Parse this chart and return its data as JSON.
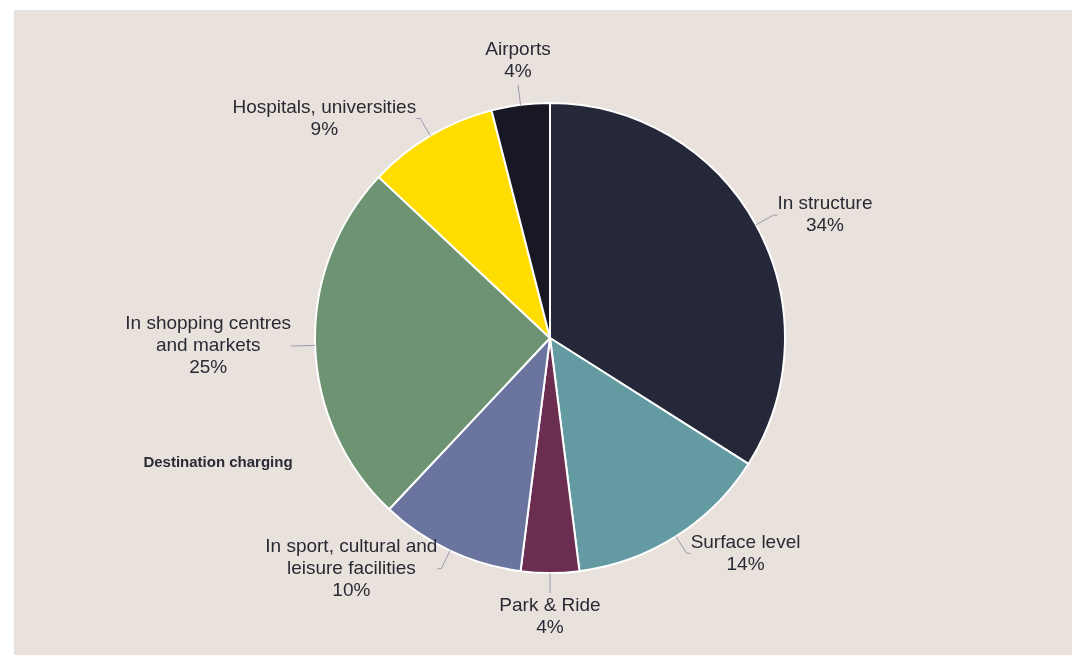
{
  "chart_data": {
    "type": "pie",
    "categories": [
      "In structure",
      "Surface level",
      "Park & Ride",
      "In sport, cultural and leisure facilities",
      "In shopping centres and markets",
      "Hospitals, universities",
      "Airports"
    ],
    "values": [
      34,
      14,
      4,
      10,
      25,
      9,
      4
    ],
    "value_labels": [
      "34%",
      "14%",
      "4%",
      "10%",
      "25%",
      "9%",
      "4%"
    ],
    "colors": [
      "#252839",
      "#649ba3",
      "#6b2d50",
      "#6a749f",
      "#6e9373",
      "#ffdd00",
      "#181825"
    ],
    "annotations": [
      "Destination charging"
    ],
    "legend": false
  }
}
